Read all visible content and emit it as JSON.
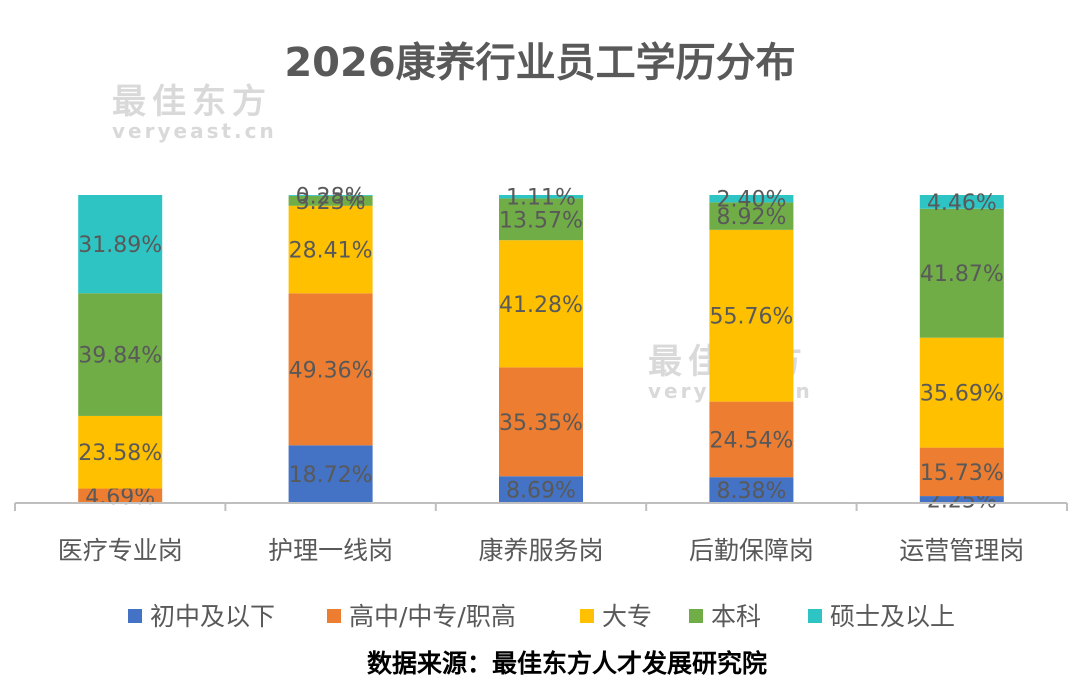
{
  "watermark": {
    "brand": "最佳东方",
    "site": "veryeast.cn"
  },
  "chart_data": {
    "type": "bar",
    "stacked": true,
    "title": "2026康养行业员工学历分布",
    "source": "数据来源：最佳东方人才发展研究院",
    "categories": [
      "医疗专业岗",
      "护理一线岗",
      "康养服务岗",
      "后勤保障岗",
      "运营管理岗"
    ],
    "ylim": [
      0,
      100
    ],
    "unit": "%",
    "legend_position": "bottom",
    "grid": false,
    "series": [
      {
        "name": "初中及以下",
        "color": "#4472C4",
        "values": [
          0,
          18.72,
          8.69,
          8.38,
          2.25
        ]
      },
      {
        "name": "高中/中专/职高",
        "color": "#ED7D31",
        "values": [
          4.69,
          49.36,
          35.35,
          24.54,
          15.73
        ]
      },
      {
        "name": "大专",
        "color": "#FFC000",
        "values": [
          23.58,
          28.41,
          41.28,
          55.76,
          35.69
        ]
      },
      {
        "name": "本科",
        "color": "#70AD47",
        "values": [
          39.84,
          3.23,
          13.57,
          8.92,
          41.87
        ]
      },
      {
        "name": "硕士及以上",
        "color": "#2EC4C4",
        "values": [
          31.89,
          0.28,
          1.11,
          2.4,
          4.46
        ]
      }
    ]
  }
}
